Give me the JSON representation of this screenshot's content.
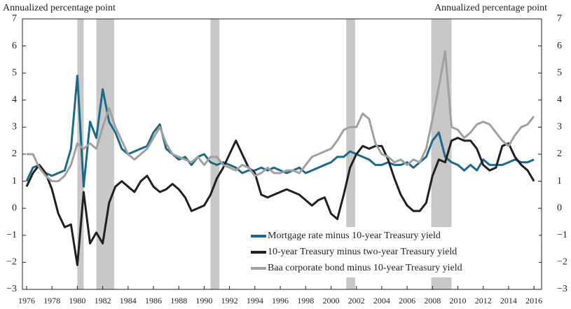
{
  "chart_data": {
    "type": "line",
    "y_label": "Annualized percentage point",
    "y2_label": "Annualized percentage point",
    "x": [
      1976,
      1976.5,
      1977,
      1977.5,
      1978,
      1978.5,
      1979,
      1979.5,
      1980,
      1980.5,
      1981,
      1981.5,
      1982,
      1982.5,
      1983,
      1983.5,
      1984,
      1984.5,
      1985,
      1985.5,
      1986,
      1986.5,
      1987,
      1987.5,
      1988,
      1988.5,
      1989,
      1989.5,
      1990,
      1990.5,
      1991,
      1991.5,
      1992,
      1992.5,
      1993,
      1993.5,
      1994,
      1994.5,
      1995,
      1995.5,
      1996,
      1996.5,
      1997,
      1997.5,
      1998,
      1998.5,
      1999,
      1999.5,
      2000,
      2000.5,
      2001,
      2001.5,
      2002,
      2002.5,
      2003,
      2003.5,
      2004,
      2004.5,
      2005,
      2005.5,
      2006,
      2006.5,
      2007,
      2007.5,
      2008,
      2008.5,
      2009,
      2009.5,
      2010,
      2010.5,
      2011,
      2011.5,
      2012,
      2012.5,
      2013,
      2013.5,
      2014,
      2014.5,
      2015,
      2015.5,
      2016
    ],
    "series": [
      {
        "name": "Mortgage rate minus 10-year Treasury yield",
        "color": "#1c6a87",
        "values": [
          1.0,
          1.5,
          1.6,
          1.3,
          1.2,
          1.3,
          1.4,
          2.2,
          4.9,
          0.8,
          3.2,
          2.6,
          4.4,
          3.2,
          2.8,
          2.2,
          2.0,
          2.1,
          2.2,
          2.3,
          2.8,
          3.1,
          2.2,
          2.0,
          1.8,
          1.9,
          1.6,
          1.9,
          2.0,
          1.7,
          1.6,
          1.7,
          1.6,
          1.5,
          1.3,
          1.4,
          1.4,
          1.5,
          1.4,
          1.5,
          1.4,
          1.3,
          1.4,
          1.5,
          1.3,
          1.4,
          1.5,
          1.6,
          1.7,
          1.9,
          1.9,
          2.1,
          2.0,
          1.9,
          1.8,
          1.6,
          1.6,
          1.7,
          1.6,
          1.6,
          1.7,
          1.5,
          1.7,
          1.9,
          2.5,
          2.8,
          1.9,
          1.7,
          1.6,
          1.4,
          1.6,
          1.4,
          1.8,
          1.6,
          1.6,
          1.6,
          1.7,
          1.8,
          1.7,
          1.7,
          1.8
        ]
      },
      {
        "name": "10-year Treasury minus two-year Treasury yield",
        "color": "#231f20",
        "values": [
          0.8,
          1.3,
          1.6,
          1.3,
          0.7,
          -0.2,
          -0.7,
          -0.6,
          -2.1,
          0.6,
          -1.3,
          -0.9,
          -1.3,
          0.2,
          0.8,
          1.0,
          0.8,
          0.6,
          1.0,
          1.2,
          0.8,
          0.6,
          0.7,
          0.9,
          0.7,
          0.4,
          -0.1,
          0.0,
          0.1,
          0.5,
          1.1,
          1.5,
          2.0,
          2.5,
          2.0,
          1.5,
          1.3,
          0.5,
          0.4,
          0.5,
          0.6,
          0.7,
          0.6,
          0.5,
          0.3,
          0.1,
          0.3,
          0.4,
          -0.2,
          -0.4,
          0.5,
          1.5,
          2.0,
          2.3,
          2.2,
          2.3,
          2.3,
          1.8,
          1.1,
          0.5,
          0.1,
          -0.1,
          -0.1,
          0.2,
          1.2,
          1.8,
          1.7,
          2.5,
          2.6,
          2.5,
          2.5,
          2.2,
          1.6,
          1.4,
          1.5,
          2.3,
          2.4,
          1.9,
          1.6,
          1.4,
          1.0
        ]
      },
      {
        "name": "Baa corporate bond minus 10-year Treasury yield",
        "color": "#a0a0a0",
        "values": [
          2.0,
          2.0,
          1.5,
          1.2,
          1.0,
          1.0,
          1.2,
          1.6,
          2.4,
          2.2,
          2.4,
          2.2,
          3.0,
          3.7,
          3.0,
          2.5,
          2.0,
          1.8,
          2.0,
          2.2,
          2.6,
          3.0,
          2.4,
          2.0,
          1.9,
          1.8,
          1.7,
          1.9,
          1.6,
          1.9,
          1.9,
          1.6,
          1.5,
          1.4,
          1.6,
          1.5,
          1.2,
          1.3,
          1.5,
          1.3,
          1.3,
          1.4,
          1.4,
          1.3,
          1.6,
          1.9,
          2.0,
          2.1,
          2.2,
          2.5,
          2.9,
          3.0,
          3.0,
          3.5,
          3.3,
          2.4,
          2.0,
          1.9,
          1.7,
          1.8,
          1.6,
          1.8,
          1.7,
          2.2,
          3.3,
          4.5,
          5.8,
          3.0,
          2.9,
          2.6,
          2.8,
          3.1,
          3.2,
          3.1,
          2.8,
          2.5,
          2.3,
          2.7,
          3.0,
          3.1,
          3.4
        ]
      }
    ],
    "recessions": [
      [
        1980.0,
        1980.5
      ],
      [
        1981.5,
        1982.9
      ],
      [
        1990.5,
        1991.2
      ],
      [
        2001.2,
        2001.9
      ],
      [
        2007.9,
        2009.5
      ]
    ],
    "recession_color": "#c8c8c8",
    "xlim": [
      1975.67,
      2016.6
    ],
    "xticks": [
      1976,
      1978,
      1980,
      1982,
      1984,
      1986,
      1988,
      1990,
      1992,
      1994,
      1996,
      1998,
      2000,
      2002,
      2004,
      2006,
      2008,
      2010,
      2012,
      2014,
      2016
    ],
    "ylim": [
      -3,
      7
    ],
    "yticks": [
      {
        "value": -3,
        "label": "−3"
      },
      {
        "value": -2,
        "label": "−2"
      },
      {
        "value": -1,
        "label": "−1"
      },
      0,
      1,
      2,
      3,
      4,
      5,
      6,
      7
    ],
    "y2lim": [
      -3,
      7
    ],
    "y2ticks": [
      {
        "value": -3,
        "label": "−3"
      },
      {
        "value": -2,
        "label": "−2"
      },
      {
        "value": -1,
        "label": "−1"
      },
      0,
      1,
      2,
      3,
      4,
      5,
      6,
      7
    ],
    "legend": "lower right"
  }
}
